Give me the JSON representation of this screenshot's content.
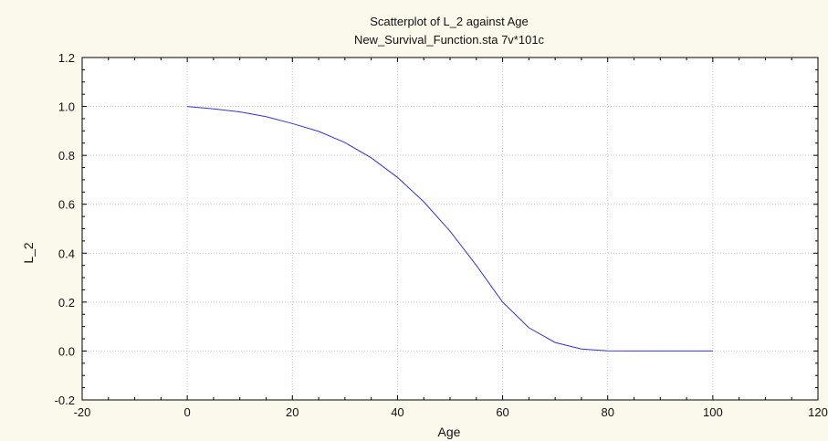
{
  "chart_data": {
    "type": "line",
    "title": "Scatterplot of L_2 against Age",
    "subtitle": "New_Survival_Function.sta 7v*101c",
    "xlabel": "Age",
    "ylabel": "L_2",
    "xlim": [
      -20,
      120
    ],
    "ylim": [
      -0.2,
      1.2
    ],
    "x_ticks": [
      "-20",
      "0",
      "20",
      "40",
      "60",
      "80",
      "100",
      "120"
    ],
    "y_ticks": [
      "-0.2",
      "0.0",
      "0.2",
      "0.4",
      "0.6",
      "0.8",
      "1.0",
      "1.2"
    ],
    "grid": true,
    "series": [
      {
        "color": "#3333dd",
        "x": [
          0,
          5,
          10,
          15,
          20,
          25,
          30,
          35,
          40,
          45,
          50,
          55,
          60,
          65,
          70,
          75,
          80,
          85,
          90,
          95,
          100
        ],
        "y": [
          1.0,
          0.99,
          0.978,
          0.958,
          0.93,
          0.898,
          0.852,
          0.79,
          0.71,
          0.61,
          0.49,
          0.35,
          0.2,
          0.095,
          0.035,
          0.008,
          0.001,
          0.0,
          0.0,
          0.0,
          0.0
        ]
      }
    ]
  },
  "colors": {
    "background": "#fbf9ec",
    "plot_background": "#ffffff",
    "grid": "#c8c8c8",
    "axis": "#000000"
  }
}
